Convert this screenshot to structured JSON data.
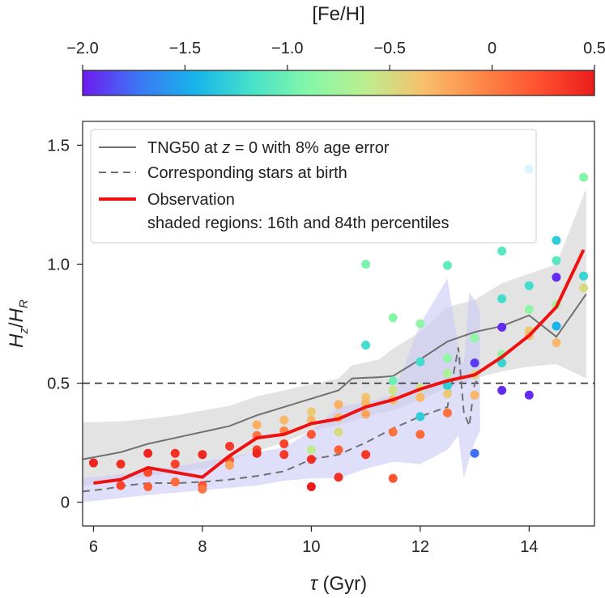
{
  "chart_data": {
    "type": "scatter",
    "xlabel": "τ (Gyr)",
    "ylabel": "H_z/H_R",
    "xlim": [
      5.8,
      15.2
    ],
    "ylim": [
      -0.1,
      1.6
    ],
    "x_ticks": [
      {
        "v": 6,
        "label": "6"
      },
      {
        "v": 8,
        "label": "8"
      },
      {
        "v": 10,
        "label": "10"
      },
      {
        "v": 12,
        "label": "12"
      },
      {
        "v": 14,
        "label": "14"
      }
    ],
    "y_ticks": [
      {
        "v": 0,
        "label": "0"
      },
      {
        "v": 0.5,
        "label": "0.5"
      },
      {
        "v": 1.0,
        "label": "1.0"
      },
      {
        "v": 1.5,
        "label": "1.5"
      }
    ],
    "reference_line": {
      "y": 0.5,
      "style": "dashed"
    },
    "colorbar": {
      "label": "[Fe/H]",
      "range": [
        -2.0,
        0.5
      ],
      "ticks": [
        {
          "v": -2.0,
          "label": "−2.0"
        },
        {
          "v": -1.5,
          "label": "−1.5"
        },
        {
          "v": -1.0,
          "label": "−1.0"
        },
        {
          "v": -0.5,
          "label": "−0.5"
        },
        {
          "v": 0,
          "label": "0"
        },
        {
          "v": 0.5,
          "label": "0.5"
        }
      ],
      "colors": [
        "#6e1af0",
        "#3c78f5",
        "#17b5ea",
        "#48e2c9",
        "#86f7a7",
        "#bdee8f",
        "#f8bf6c",
        "#fd8848",
        "#fe5230",
        "#ec1c1c"
      ]
    },
    "legend": {
      "placement": "top-left",
      "entries": [
        {
          "pre": "TNG50 at ",
          "italic": "z",
          "post": " = 0 with 8% age error",
          "style": "solid-gray"
        },
        {
          "pre": "Corresponding stars at birth",
          "italic": "",
          "post": "",
          "style": "dashed-gray"
        },
        {
          "pre": "Observation",
          "italic": "",
          "post": "",
          "style": "solid-red"
        },
        {
          "pre": "shaded regions: 16th and 84th percentiles",
          "italic": "",
          "post": "",
          "style": "none"
        }
      ]
    },
    "series": [
      {
        "name": "TNG50 at z = 0 with 8% age error",
        "color": "#707070",
        "x": [
          5.8,
          6.5,
          7.0,
          7.5,
          8.0,
          8.5,
          9.0,
          9.5,
          10.0,
          10.5,
          10.75,
          11.25,
          11.5,
          12.0,
          12.5,
          13.0,
          13.5,
          14.0,
          14.5,
          15.05
        ],
        "y": [
          0.18,
          0.21,
          0.245,
          0.27,
          0.295,
          0.32,
          0.365,
          0.4,
          0.435,
          0.47,
          0.52,
          0.525,
          0.53,
          0.6,
          0.675,
          0.715,
          0.74,
          0.785,
          0.695,
          0.875
        ],
        "band_upper": [
          0.335,
          0.34,
          0.35,
          0.365,
          0.385,
          0.405,
          0.445,
          0.47,
          0.495,
          0.52,
          0.575,
          0.6,
          0.645,
          0.715,
          0.82,
          0.85,
          0.92,
          0.96,
          1.0,
          1.32
        ],
        "band_lower": [
          0.07,
          0.09,
          0.11,
          0.125,
          0.14,
          0.175,
          0.215,
          0.25,
          0.3,
          0.325,
          0.34,
          0.375,
          0.385,
          0.43,
          0.48,
          0.52,
          0.55,
          0.57,
          0.58,
          0.52
        ]
      },
      {
        "name": "Corresponding stars at birth",
        "color": "#707070",
        "x": [
          5.8,
          6.2,
          6.6,
          7.0,
          7.5,
          8.0,
          8.5,
          9.0,
          9.5,
          10.0,
          10.5,
          11.0,
          11.5,
          12.0,
          12.5,
          12.7,
          12.8,
          12.9,
          13.0,
          13.1
        ],
        "y": [
          0.045,
          0.055,
          0.07,
          0.08,
          0.08,
          0.085,
          0.095,
          0.11,
          0.13,
          0.18,
          0.2,
          0.25,
          0.31,
          0.36,
          0.4,
          0.65,
          0.38,
          0.32,
          0.5,
          0.52
        ],
        "band_upper": [
          0.1,
          0.11,
          0.12,
          0.135,
          0.15,
          0.17,
          0.19,
          0.21,
          0.23,
          0.3,
          0.4,
          0.42,
          0.45,
          0.75,
          0.94,
          0.65,
          0.58,
          0.88,
          0.85,
          0.8
        ],
        "band_lower": [
          0.0,
          0.01,
          0.02,
          0.03,
          0.04,
          0.05,
          0.06,
          0.07,
          0.09,
          0.1,
          0.1,
          0.14,
          0.17,
          0.16,
          0.22,
          0.28,
          0.1,
          0.18,
          0.25,
          0.3
        ]
      },
      {
        "name": "Observation",
        "color": "#ee1111",
        "x": [
          6.0,
          6.5,
          7.0,
          7.5,
          8.0,
          8.5,
          9.0,
          9.5,
          10.0,
          10.5,
          11.0,
          11.5,
          12.0,
          12.5,
          13.0,
          13.5,
          14.0,
          14.5,
          15.0
        ],
        "y": [
          0.08,
          0.095,
          0.145,
          0.125,
          0.105,
          0.195,
          0.27,
          0.285,
          0.33,
          0.35,
          0.4,
          0.43,
          0.475,
          0.51,
          0.535,
          0.61,
          0.7,
          0.82,
          1.06
        ]
      }
    ],
    "scatter_points": [
      {
        "x": 6.0,
        "y": 0.165,
        "feh": 0.45
      },
      {
        "x": 6.5,
        "y": 0.16,
        "feh": 0.4
      },
      {
        "x": 6.5,
        "y": 0.07,
        "feh": 0.3
      },
      {
        "x": 7.0,
        "y": 0.205,
        "feh": 0.45
      },
      {
        "x": 7.0,
        "y": 0.125,
        "feh": 0.25
      },
      {
        "x": 7.0,
        "y": 0.065,
        "feh": 0.15
      },
      {
        "x": 7.5,
        "y": 0.205,
        "feh": 0.4
      },
      {
        "x": 7.5,
        "y": 0.16,
        "feh": 0.3
      },
      {
        "x": 7.5,
        "y": 0.085,
        "feh": 0.1
      },
      {
        "x": 8.0,
        "y": 0.2,
        "feh": 0.45
      },
      {
        "x": 8.0,
        "y": 0.07,
        "feh": 0.25
      },
      {
        "x": 8.0,
        "y": 0.055,
        "feh": 0.05
      },
      {
        "x": 8.5,
        "y": 0.235,
        "feh": 0.35
      },
      {
        "x": 8.5,
        "y": 0.175,
        "feh": 0.2
      },
      {
        "x": 8.5,
        "y": 0.155,
        "feh": -0.2
      },
      {
        "x": 9.0,
        "y": 0.325,
        "feh": -0.25
      },
      {
        "x": 9.0,
        "y": 0.28,
        "feh": 0.05
      },
      {
        "x": 9.0,
        "y": 0.22,
        "feh": 0.3
      },
      {
        "x": 9.0,
        "y": 0.205,
        "feh": 0.45
      },
      {
        "x": 9.5,
        "y": 0.345,
        "feh": -0.3
      },
      {
        "x": 9.5,
        "y": 0.3,
        "feh": -0.05
      },
      {
        "x": 9.5,
        "y": 0.245,
        "feh": 0.3
      },
      {
        "x": 9.5,
        "y": 0.2,
        "feh": 0.35
      },
      {
        "x": 10.0,
        "y": 0.38,
        "feh": -0.4
      },
      {
        "x": 10.0,
        "y": 0.345,
        "feh": -0.3
      },
      {
        "x": 10.0,
        "y": 0.285,
        "feh": 0.2
      },
      {
        "x": 10.0,
        "y": 0.22,
        "feh": -0.6
      },
      {
        "x": 10.0,
        "y": 0.18,
        "feh": 0.4
      },
      {
        "x": 10.0,
        "y": 0.065,
        "feh": 0.5
      },
      {
        "x": 10.5,
        "y": 0.41,
        "feh": -0.25
      },
      {
        "x": 10.5,
        "y": 0.355,
        "feh": -0.3
      },
      {
        "x": 10.5,
        "y": 0.295,
        "feh": -0.5
      },
      {
        "x": 10.5,
        "y": 0.22,
        "feh": 0.15
      },
      {
        "x": 10.5,
        "y": 0.105,
        "feh": 0.4
      },
      {
        "x": 11.0,
        "y": 1.0,
        "feh": -0.95
      },
      {
        "x": 11.0,
        "y": 0.66,
        "feh": -1.2
      },
      {
        "x": 11.0,
        "y": 0.44,
        "feh": -0.35
      },
      {
        "x": 11.0,
        "y": 0.415,
        "feh": -0.3
      },
      {
        "x": 11.0,
        "y": 0.37,
        "feh": -0.2
      },
      {
        "x": 11.0,
        "y": 0.2,
        "feh": 0.35
      },
      {
        "x": 11.5,
        "y": 0.775,
        "feh": -0.9
      },
      {
        "x": 11.5,
        "y": 0.51,
        "feh": -1.0
      },
      {
        "x": 11.5,
        "y": 0.47,
        "feh": -0.55
      },
      {
        "x": 11.5,
        "y": 0.43,
        "feh": -0.3
      },
      {
        "x": 11.5,
        "y": 0.295,
        "feh": 0.05
      },
      {
        "x": 11.5,
        "y": 0.1,
        "feh": 0.2
      },
      {
        "x": 12.0,
        "y": 0.75,
        "feh": -0.85
      },
      {
        "x": 12.0,
        "y": 0.59,
        "feh": -1.2
      },
      {
        "x": 12.0,
        "y": 0.48,
        "feh": -0.55
      },
      {
        "x": 12.0,
        "y": 0.44,
        "feh": -0.3
      },
      {
        "x": 12.0,
        "y": 0.36,
        "feh": -1.3
      },
      {
        "x": 12.0,
        "y": 0.285,
        "feh": 0.1
      },
      {
        "x": 12.5,
        "y": 0.995,
        "feh": -1.05
      },
      {
        "x": 12.5,
        "y": 0.605,
        "feh": -0.85
      },
      {
        "x": 12.5,
        "y": 0.54,
        "feh": -0.7
      },
      {
        "x": 12.5,
        "y": 0.49,
        "feh": -1.3
      },
      {
        "x": 12.5,
        "y": 0.455,
        "feh": -0.4
      },
      {
        "x": 12.5,
        "y": 0.375,
        "feh": 0.05
      },
      {
        "x": 13.0,
        "y": 0.69,
        "feh": -0.85
      },
      {
        "x": 13.0,
        "y": 0.585,
        "feh": -1.9
      },
      {
        "x": 13.0,
        "y": 0.535,
        "feh": -0.45
      },
      {
        "x": 13.0,
        "y": 0.45,
        "feh": -0.3
      },
      {
        "x": 13.0,
        "y": 0.205,
        "feh": -1.75
      },
      {
        "x": 13.5,
        "y": 1.055,
        "feh": -1.1
      },
      {
        "x": 13.5,
        "y": 0.855,
        "feh": -1.2
      },
      {
        "x": 13.5,
        "y": 0.735,
        "feh": -1.95
      },
      {
        "x": 13.5,
        "y": 0.62,
        "feh": -0.85
      },
      {
        "x": 13.5,
        "y": 0.585,
        "feh": -1.25
      },
      {
        "x": 13.5,
        "y": 0.47,
        "feh": -1.95
      },
      {
        "x": 14.0,
        "y": 1.4,
        "feh": -1.45
      },
      {
        "x": 14.0,
        "y": 0.91,
        "feh": -1.2
      },
      {
        "x": 14.0,
        "y": 0.81,
        "feh": -0.85
      },
      {
        "x": 14.0,
        "y": 0.72,
        "feh": -0.4
      },
      {
        "x": 14.0,
        "y": 0.7,
        "feh": -0.3
      },
      {
        "x": 14.0,
        "y": 0.45,
        "feh": -1.95
      },
      {
        "x": 14.5,
        "y": 1.1,
        "feh": -1.3
      },
      {
        "x": 14.5,
        "y": 1.015,
        "feh": -1.1
      },
      {
        "x": 14.5,
        "y": 0.945,
        "feh": -1.95
      },
      {
        "x": 14.5,
        "y": 0.83,
        "feh": -0.7
      },
      {
        "x": 14.5,
        "y": 0.74,
        "feh": -1.45
      },
      {
        "x": 14.5,
        "y": 0.67,
        "feh": -0.3
      },
      {
        "x": 15.0,
        "y": 1.365,
        "feh": -0.9
      },
      {
        "x": 15.0,
        "y": 0.95,
        "feh": -1.25
      },
      {
        "x": 15.0,
        "y": 0.9,
        "feh": -0.5
      }
    ]
  }
}
